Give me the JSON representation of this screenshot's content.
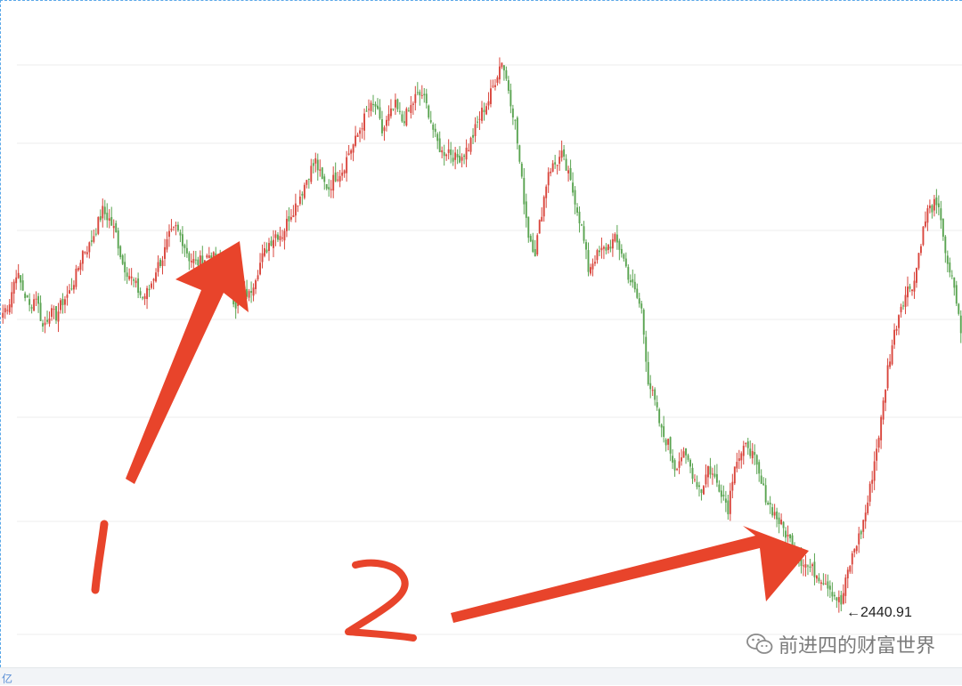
{
  "watermark": {
    "text": "前进四的财富世界",
    "icon": "wechat-icon"
  },
  "axis_unit_label": "亿",
  "annotations": {
    "label_1": "1",
    "label_2": "2",
    "low_label": "←2440.91",
    "arrow_color": "#e8442b"
  },
  "colors": {
    "up": "#d9463d",
    "down": "#5aa451",
    "grid": "#ececec",
    "frame": "#59a7e8"
  },
  "chart_data": {
    "type": "candlestick",
    "title": "",
    "xlabel": "",
    "ylabel": "",
    "grid": true,
    "ylim": [
      2350,
      3450
    ],
    "marked_low": 2440.91,
    "series": [
      {
        "values": [
          2945,
          2965,
          3015,
          2985,
          2955,
          2975,
          2920,
          2945,
          2940,
          2965,
          2980,
          3010,
          3050,
          3060,
          3090,
          3120,
          3105,
          3080,
          3030,
          3010,
          2990,
          2970,
          2985,
          3020,
          3040,
          3075,
          3090,
          3070,
          3040,
          3030,
          3035,
          3045,
          3035,
          3030,
          2990,
          2960,
          2985,
          2975,
          3010,
          3040,
          3065,
          3080,
          3080,
          3110,
          3130,
          3155,
          3185,
          3205,
          3170,
          3160,
          3180,
          3190,
          3220,
          3240,
          3270,
          3295,
          3300,
          3255,
          3280,
          3300,
          3275,
          3290,
          3315,
          3320,
          3290,
          3245,
          3220,
          3225,
          3210,
          3215,
          3230,
          3260,
          3290,
          3310,
          3345,
          3380,
          3330,
          3270,
          3170,
          3080,
          3050,
          3120,
          3190,
          3200,
          3215,
          3180,
          3140,
          3090,
          3020,
          3040,
          3050,
          3060,
          3070,
          3050,
          3010,
          2980,
          2950,
          2830,
          2790,
          2740,
          2720,
          2680,
          2700,
          2690,
          2660,
          2640,
          2680,
          2660,
          2640,
          2610,
          2690,
          2700,
          2720,
          2690,
          2650,
          2620,
          2600,
          2580,
          2560,
          2540,
          2520,
          2510,
          2500,
          2490,
          2480,
          2460,
          2445,
          2500,
          2540,
          2570,
          2620,
          2690,
          2760,
          2850,
          2910,
          2960,
          2985,
          3000,
          3070,
          3120,
          3130,
          3110,
          3020,
          2990,
          2910
        ],
        "marker_indices": [
          10,
          66,
          121
        ]
      }
    ]
  }
}
